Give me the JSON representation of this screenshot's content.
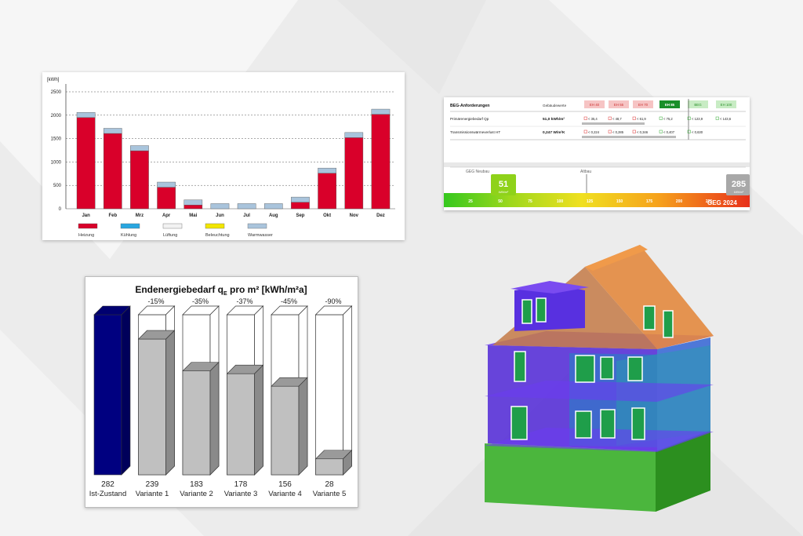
{
  "monthly_chart": {
    "chart_data": {
      "type": "bar",
      "stacked": true,
      "ylabel": "[kWh]",
      "ylim": [
        0,
        2500
      ],
      "yticks": [
        0,
        500,
        1000,
        1500,
        2000,
        2500
      ],
      "grid": true,
      "legend_position": "bottom",
      "categories": [
        "Jan",
        "Feb",
        "Mrz",
        "Apr",
        "Mai",
        "Jun",
        "Jul",
        "Aug",
        "Sep",
        "Okt",
        "Nov",
        "Dez"
      ],
      "series": [
        {
          "name": "Heizung",
          "color": "#d9002a",
          "values": [
            1950,
            1610,
            1240,
            460,
            80,
            0,
            0,
            0,
            140,
            760,
            1520,
            2020
          ]
        },
        {
          "name": "Kühlung",
          "color": "#29a6e0",
          "values": [
            0,
            0,
            0,
            0,
            0,
            0,
            0,
            0,
            0,
            0,
            0,
            0
          ]
        },
        {
          "name": "Lüftung",
          "color": "#f2f2f2",
          "values": [
            0,
            0,
            0,
            0,
            0,
            0,
            0,
            0,
            0,
            0,
            0,
            0
          ]
        },
        {
          "name": "Beleuchtung",
          "color": "#f2e600",
          "values": [
            0,
            0,
            0,
            0,
            0,
            0,
            0,
            0,
            0,
            0,
            0,
            0
          ]
        },
        {
          "name": "Warmwasser",
          "color": "#a9c4dc",
          "values": [
            110,
            110,
            110,
            110,
            110,
            110,
            110,
            110,
            110,
            110,
            110,
            110
          ]
        }
      ]
    }
  },
  "geg_panel": {
    "table": {
      "title": "BEG-Anforderungen",
      "col_header": "Gebäudewerte",
      "eh_labels": [
        "EH 40",
        "EH 55",
        "EH 70",
        "EH 85",
        "BEG",
        "EH 100"
      ],
      "rows": [
        {
          "label": "Primärenergiebedarf Qp",
          "value": "51,0 kWh/m²",
          "cells": [
            "< 35,4",
            "< 48,7",
            "< 61,9",
            "< 75,2",
            "< 123,9",
            "< 143,6"
          ]
        },
        {
          "label": "Transmissionswärmeverlust HT",
          "value": "0,247 W/m²K",
          "cells": [
            "< 0,224",
            "< 0,285",
            "< 0,346",
            "< 0,407",
            "< 0,630",
            ""
          ]
        }
      ]
    },
    "scale": {
      "new_label": "GEG Neubau",
      "old_label": "Altbau",
      "current_value": "51",
      "current_unit": "kWh/m²",
      "ref_value": "285",
      "ref_unit": "kWh/m²",
      "brand": "GEG 2024",
      "ticks": [
        "25",
        "50",
        "75",
        "100",
        "125",
        "150",
        "175",
        "200",
        "225"
      ]
    }
  },
  "endenergie_chart": {
    "chart_data": {
      "type": "bar",
      "title": "Endenergiebedarf q",
      "title_sub": "E",
      "title_rest": " pro m²  [kWh/m²a]",
      "categories": [
        "Ist-Zustand",
        "Variante 1",
        "Variante 2",
        "Variante 3",
        "Variante 4",
        "Variante 5"
      ],
      "values": [
        282,
        239,
        183,
        178,
        156,
        28
      ],
      "percent_labels": [
        "",
        "-15%",
        "-35%",
        "-37%",
        "-45%",
        "-90%"
      ],
      "ymax": 282,
      "colors": {
        "baseline": "#000080",
        "variant": "#c0c0c0"
      }
    }
  }
}
